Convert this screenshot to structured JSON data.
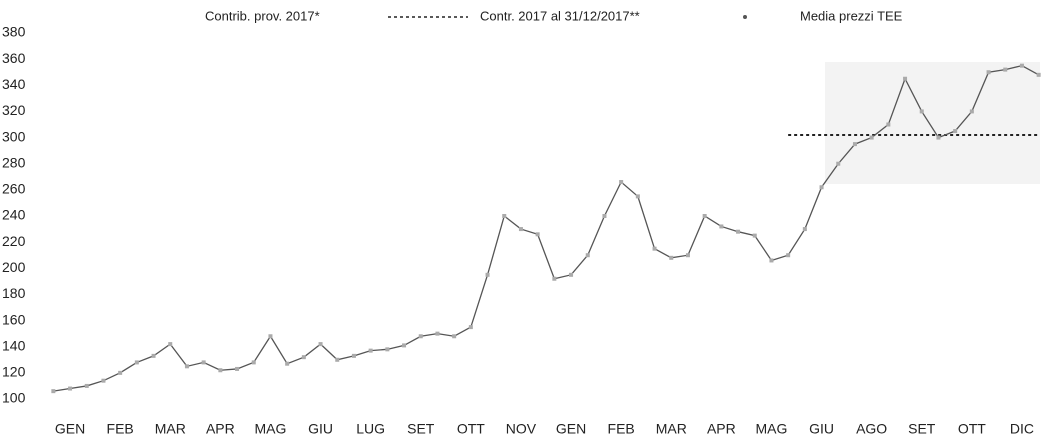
{
  "chart_data": {
    "type": "line",
    "categories": [
      null,
      "GEN",
      null,
      null,
      "FEB",
      null,
      null,
      "MAR",
      null,
      null,
      "APR",
      null,
      null,
      "MAG",
      null,
      null,
      "GIU",
      null,
      null,
      "LUG",
      null,
      null,
      "SET",
      null,
      null,
      "OTT",
      null,
      null,
      "NOV",
      null,
      null,
      "GEN",
      null,
      null,
      "FEB",
      null,
      null,
      "MAR",
      null,
      null,
      "APR",
      null,
      null,
      "MAG",
      null,
      null,
      "GIU",
      null,
      null,
      "AGO",
      null,
      null,
      "SET",
      null,
      null,
      "OTT",
      null,
      null,
      "DIC",
      null
    ],
    "series": [
      {
        "name": "Contrib. prov. 2017*",
        "color": "#999999",
        "style": "solid",
        "values": [
          null,
          null,
          null,
          null,
          null,
          null,
          null,
          null,
          null,
          null,
          null,
          null,
          null,
          null,
          null,
          null,
          null,
          null,
          null,
          null,
          null,
          null,
          null,
          null,
          null,
          null,
          null,
          null,
          null,
          null,
          null,
          null,
          null,
          null,
          null,
          null,
          null,
          null,
          null,
          null,
          null,
          null,
          null,
          null,
          null,
          null,
          null,
          null,
          null,
          null,
          null,
          null,
          null,
          null,
          null,
          null,
          null,
          null,
          null,
          null
        ]
      },
      {
        "name": "Contr. 2017 al 31/12/2017**",
        "color": "#222222",
        "style": "dotted",
        "values": [
          null,
          null,
          null,
          null,
          null,
          null,
          null,
          null,
          null,
          null,
          null,
          null,
          null,
          null,
          null,
          null,
          null,
          null,
          null,
          null,
          null,
          null,
          null,
          null,
          null,
          null,
          null,
          null,
          null,
          null,
          null,
          null,
          null,
          null,
          null,
          null,
          null,
          null,
          null,
          null,
          null,
          null,
          null,
          null,
          302,
          302,
          302,
          302,
          302,
          302,
          302,
          302,
          302,
          302,
          302,
          302,
          302,
          302,
          302,
          302
        ]
      },
      {
        "name": "Media prezzi TEE",
        "color": "#555555",
        "style": "marker",
        "values": [
          106,
          108,
          110,
          114,
          120,
          128,
          133,
          142,
          125,
          128,
          122,
          123,
          128,
          148,
          127,
          132,
          142,
          130,
          133,
          137,
          138,
          141,
          148,
          150,
          148,
          155,
          195,
          240,
          230,
          226,
          192,
          195,
          210,
          240,
          266,
          255,
          215,
          208,
          210,
          240,
          232,
          228,
          225,
          206,
          210,
          230,
          262,
          280,
          295,
          300,
          310,
          345,
          320,
          300,
          305,
          320,
          350,
          352,
          355,
          348
        ]
      }
    ],
    "ylim": [
      100,
      380
    ],
    "yticks": [
      100,
      120,
      140,
      160,
      180,
      200,
      220,
      240,
      260,
      280,
      300,
      320,
      340,
      360,
      380
    ],
    "grid": false
  }
}
